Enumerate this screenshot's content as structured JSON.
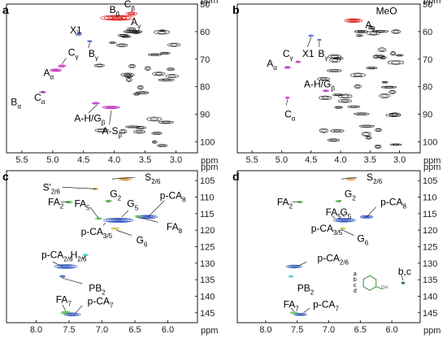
{
  "chart_data": [
    {
      "panel": "a",
      "type": "scatter",
      "xlabel": "ppm",
      "ylabel": "ppm",
      "xlim": [
        5.75,
        2.65
      ],
      "ylim": [
        50,
        104
      ],
      "x_ticks": [
        "5.5",
        "5.0",
        "4.5",
        "4.0",
        "3.5",
        "3.0"
      ],
      "y_ticks": [
        "50",
        "60",
        "70",
        "80",
        "90",
        "100"
      ],
      "peaks": [
        {
          "label": "B",
          "sub": "β",
          "x": 3.95,
          "y": 55.0,
          "color": "#e02020",
          "w": 0.55,
          "h": 1.8,
          "n": 3
        },
        {
          "label": "C",
          "sub": "β",
          "x": 3.72,
          "y": 53.5,
          "color": "#e02020",
          "w": 0.18,
          "h": 1.2,
          "n": 1
        },
        {
          "label": "A",
          "sub": "γ",
          "x": 3.7,
          "y": 60.0,
          "color": "#222222",
          "w": 0.3,
          "h": 1.0,
          "n": 2
        },
        {
          "label": "X1",
          "sub": "",
          "x": 4.58,
          "y": 61.0,
          "color": "#4c63c8",
          "w": 0.1,
          "h": 0.7,
          "n": 1
        },
        {
          "label": "B",
          "sub": "γ",
          "x": 4.4,
          "y": 63.5,
          "color": "#4c63c8",
          "w": 0.07,
          "h": 0.6,
          "n": 1
        },
        {
          "label": "C",
          "sub": "γ",
          "x": 4.85,
          "y": 72.5,
          "color": "#c02fc0",
          "w": 0.12,
          "h": 0.8,
          "n": 1
        },
        {
          "label": "A",
          "sub": "α",
          "x": 4.95,
          "y": 74.0,
          "color": "#c02fc0",
          "w": 0.18,
          "h": 0.9,
          "n": 2
        },
        {
          "label": "C",
          "sub": "α",
          "x": 5.15,
          "y": 82.0,
          "color": "#c02fc0",
          "w": 0.07,
          "h": 0.6,
          "n": 1
        },
        {
          "label": "A-H/G",
          "sub": "β",
          "x": 4.3,
          "y": 86.0,
          "color": "#c02fc0",
          "w": 0.12,
          "h": 0.7,
          "n": 1
        },
        {
          "label": "A-S",
          "sub": "β",
          "x": 4.05,
          "y": 87.5,
          "color": "#c02fc0",
          "w": 0.28,
          "h": 0.9,
          "n": 2
        }
      ],
      "annotations": [
        {
          "text": "B",
          "sub": "β",
          "x": 4.08,
          "y": 52.0
        },
        {
          "text": "C",
          "sub": "β",
          "x": 3.84,
          "y": 50.0
        },
        {
          "text": "A",
          "sub": "γ",
          "x": 3.73,
          "y": 56.5
        },
        {
          "text": "X1",
          "sub": "",
          "x": 4.72,
          "y": 59.5
        },
        {
          "text": "B",
          "sub": "γ",
          "x": 4.42,
          "y": 68.0
        },
        {
          "text": "C",
          "sub": "γ",
          "x": 4.75,
          "y": 67.5
        },
        {
          "text": "A",
          "sub": "α",
          "x": 5.15,
          "y": 75.0
        },
        {
          "text": "B",
          "sub": "α",
          "x": 5.68,
          "y": 85.5
        },
        {
          "text": "C",
          "sub": "α",
          "x": 5.3,
          "y": 84.0
        },
        {
          "text": "A-H/G",
          "sub": "β",
          "x": 4.65,
          "y": 91.5
        },
        {
          "text": "A-S",
          "sub": "β",
          "x": 4.2,
          "y": 96.0
        }
      ],
      "leaders": [
        [
          4.58,
          60.0,
          4.62,
          59.6
        ],
        [
          4.4,
          64.0,
          4.42,
          66.0
        ],
        [
          4.85,
          71.8,
          4.78,
          69.6
        ],
        [
          5.15,
          81.6,
          5.22,
          82.2
        ],
        [
          4.28,
          86.6,
          4.42,
          89.5
        ],
        [
          4.05,
          88.6,
          4.08,
          93.8
        ]
      ]
    },
    {
      "panel": "b",
      "type": "scatter",
      "xlabel": "ppm",
      "ylabel": "ppm",
      "xlim": [
        5.75,
        2.65
      ],
      "ylim": [
        50,
        104
      ],
      "x_ticks": [
        "5.5",
        "5.0",
        "4.5",
        "4.0",
        "3.5",
        "3.0"
      ],
      "y_ticks": [
        "50",
        "60",
        "70",
        "80",
        "90",
        "100"
      ],
      "peaks": [
        {
          "label": "MeO",
          "sub": "",
          "x": 3.78,
          "y": 56.0,
          "color": "#e02020",
          "w": 0.3,
          "h": 1.3,
          "n": 2
        },
        {
          "label": "A",
          "sub": "γ",
          "x": 3.65,
          "y": 60.0,
          "color": "#222222",
          "w": 0.22,
          "h": 0.9,
          "n": 1
        },
        {
          "label": "X1",
          "sub": "",
          "x": 4.5,
          "y": 61.5,
          "color": "#4c63c8",
          "w": 0.08,
          "h": 0.6,
          "n": 1
        },
        {
          "label": "B",
          "sub": "γ",
          "x": 4.36,
          "y": 63.0,
          "color": "#4c63c8",
          "w": 0.06,
          "h": 0.5,
          "n": 1
        },
        {
          "label": "C",
          "sub": "γ",
          "x": 4.72,
          "y": 71.0,
          "color": "#c02fc0",
          "w": 0.08,
          "h": 0.6,
          "n": 1
        },
        {
          "label": "A",
          "sub": "α",
          "x": 4.9,
          "y": 73.0,
          "color": "#c02fc0",
          "w": 0.1,
          "h": 0.7,
          "n": 1
        },
        {
          "label": "A-H/G",
          "sub": "β",
          "x": 4.25,
          "y": 81.5,
          "color": "#c02fc0",
          "w": 0.1,
          "h": 0.6,
          "n": 1
        },
        {
          "label": "C",
          "sub": "α",
          "x": 4.9,
          "y": 84.0,
          "color": "#c02fc0",
          "w": 0.06,
          "h": 0.5,
          "n": 1
        }
      ],
      "annotations": [
        {
          "text": "MeO",
          "sub": "",
          "x": 3.4,
          "y": 52.5
        },
        {
          "text": "A",
          "sub": "γ",
          "x": 3.58,
          "y": 57.5
        },
        {
          "text": "A",
          "sub": "α",
          "x": 5.25,
          "y": 71.5
        },
        {
          "text": "C",
          "sub": "γ",
          "x": 4.98,
          "y": 68.0
        },
        {
          "text": "X1",
          "sub": "",
          "x": 4.65,
          "y": 68.0
        },
        {
          "text": "B",
          "sub": "γ",
          "x": 4.38,
          "y": 68.0
        },
        {
          "text": "A-H/G",
          "sub": "β",
          "x": 4.62,
          "y": 79.0
        },
        {
          "text": "C",
          "sub": "α",
          "x": 4.95,
          "y": 90.0
        }
      ],
      "leaders": [
        [
          4.5,
          62.2,
          4.56,
          65.6
        ],
        [
          4.36,
          63.6,
          4.36,
          65.6
        ],
        [
          4.9,
          84.6,
          4.92,
          86.8
        ]
      ]
    },
    {
      "panel": "c",
      "type": "scatter",
      "xlabel": "ppm",
      "ylabel": "ppm",
      "xlim": [
        8.45,
        5.55
      ],
      "ylim": [
        102,
        148
      ],
      "x_ticks": [
        "8.0",
        "7.5",
        "7.0",
        "6.5",
        "6.0"
      ],
      "y_ticks": [
        "105",
        "110",
        "115",
        "120",
        "125",
        "130",
        "135",
        "140",
        "145"
      ],
      "peaks": [
        {
          "label": "S",
          "sub": "2/6",
          "x": 6.65,
          "y": 104.5,
          "color": "#d49040",
          "w": 0.2,
          "h": 0.9,
          "n": 2
        },
        {
          "label": "S'",
          "sub": "2/6",
          "x": 7.1,
          "y": 107.5,
          "color": "#d49040",
          "w": 0.07,
          "h": 0.5,
          "n": 1
        },
        {
          "label": "FA",
          "sub": "2",
          "x": 7.5,
          "y": 111.5,
          "color": "#5cc050",
          "w": 0.1,
          "h": 0.6,
          "n": 1
        },
        {
          "label": "G",
          "sub": "2",
          "x": 6.9,
          "y": 111.2,
          "color": "#5cc050",
          "w": 0.1,
          "h": 0.6,
          "n": 1
        },
        {
          "label": "p-CA",
          "sub": "8",
          "x": 6.32,
          "y": 116.0,
          "color": "#3a5fc0",
          "w": 0.32,
          "h": 1.0,
          "n": 3
        },
        {
          "label": "G",
          "sub": "5",
          "x": 6.75,
          "y": 117.0,
          "color": "#3a5fc0",
          "w": 0.45,
          "h": 1.3,
          "n": 4
        },
        {
          "label": "FA",
          "sub": "5",
          "x": 7.05,
          "y": 116.5,
          "color": "#5cc050",
          "w": 0.1,
          "h": 0.5,
          "n": 1
        },
        {
          "label": "FA",
          "sub": "8",
          "x": 6.45,
          "y": 115.8,
          "color": "#5cc050",
          "w": 0.1,
          "h": 0.5,
          "n": 1
        },
        {
          "label": "G",
          "sub": "6",
          "x": 6.8,
          "y": 119.5,
          "color": "#c8c040",
          "w": 0.12,
          "h": 0.6,
          "n": 1
        },
        {
          "label": "H",
          "sub": "2/6",
          "x": 7.25,
          "y": 127.5,
          "color": "#40c8c8",
          "w": 0.08,
          "h": 0.6,
          "n": 1
        },
        {
          "label": "p-CA",
          "sub": "2/6",
          "x": 7.55,
          "y": 131.0,
          "color": "#3a5fc0",
          "w": 0.35,
          "h": 1.2,
          "n": 3
        },
        {
          "label": "PB",
          "sub": "2",
          "x": 7.6,
          "y": 134.0,
          "color": "#3a5fc0",
          "w": 0.08,
          "h": 0.6,
          "n": 1
        },
        {
          "label": "FA",
          "sub": "7",
          "x": 7.55,
          "y": 145.0,
          "color": "#5cc050",
          "w": 0.15,
          "h": 0.8,
          "n": 2
        },
        {
          "label": "p-CA",
          "sub": "7",
          "x": 7.45,
          "y": 145.5,
          "color": "#3a5fc0",
          "w": 0.25,
          "h": 0.9,
          "n": 2
        }
      ],
      "annotations": [
        {
          "text": "S",
          "sub": "2/6",
          "x": 6.35,
          "y": 104.0
        },
        {
          "text": "S'",
          "sub": "2/6",
          "x": 7.9,
          "y": 107.0
        },
        {
          "text": "FA",
          "sub": "2",
          "x": 7.82,
          "y": 111.5
        },
        {
          "text": "FA",
          "sub": "5",
          "x": 7.42,
          "y": 112.0
        },
        {
          "text": "G",
          "sub": "2",
          "x": 6.88,
          "y": 109.0
        },
        {
          "text": "G",
          "sub": "5",
          "x": 6.62,
          "y": 112.0
        },
        {
          "text": "p-CA",
          "sub": "8",
          "x": 6.12,
          "y": 109.5
        },
        {
          "text": "FA",
          "sub": "8",
          "x": 6.02,
          "y": 119.0
        },
        {
          "text": "p-CA",
          "sub": "3/5",
          "x": 7.32,
          "y": 120.5
        },
        {
          "text": "G",
          "sub": "6",
          "x": 6.48,
          "y": 123.0
        },
        {
          "text": "H",
          "sub": "2/6",
          "x": 7.48,
          "y": 127.5
        },
        {
          "text": "p-CA",
          "sub": "2/6",
          "x": 7.92,
          "y": 127.5
        },
        {
          "text": "PB",
          "sub": "2",
          "x": 7.2,
          "y": 137.5
        },
        {
          "text": "FA",
          "sub": "7",
          "x": 7.7,
          "y": 141.0
        },
        {
          "text": "p-CA",
          "sub": "7",
          "x": 7.22,
          "y": 141.5
        }
      ],
      "leaders": [
        [
          6.85,
          104.5,
          6.5,
          104.0
        ],
        [
          7.1,
          107.5,
          7.6,
          107.0
        ],
        [
          7.5,
          111.5,
          7.62,
          111.5
        ],
        [
          7.05,
          116.5,
          7.18,
          113.0
        ],
        [
          6.9,
          111.6,
          6.9,
          111.0
        ],
        [
          6.7,
          116.0,
          6.6,
          114.0
        ],
        [
          6.3,
          116.0,
          6.05,
          111.0
        ],
        [
          6.4,
          116.3,
          6.15,
          117.6
        ],
        [
          6.95,
          117.8,
          6.98,
          118.6
        ],
        [
          6.78,
          120.0,
          6.55,
          121.6
        ],
        [
          7.25,
          127.8,
          7.3,
          128.6
        ],
        [
          7.6,
          131.0,
          7.75,
          129.6
        ],
        [
          7.6,
          134.5,
          7.3,
          136.2
        ],
        [
          7.55,
          144.5,
          7.6,
          142.6
        ],
        [
          7.4,
          145.0,
          7.3,
          142.8
        ]
      ]
    },
    {
      "panel": "d",
      "type": "scatter",
      "xlabel": "ppm",
      "ylabel": "ppm",
      "xlim": [
        8.45,
        5.55
      ],
      "ylim": [
        102,
        148
      ],
      "x_ticks": [
        "8.0",
        "7.5",
        "7.0",
        "6.5",
        "6.0"
      ],
      "y_ticks": [
        "105",
        "110",
        "115",
        "120",
        "125",
        "130",
        "135",
        "140",
        "145"
      ],
      "peaks": [
        {
          "label": "S",
          "sub": "2/6",
          "x": 6.65,
          "y": 104.5,
          "color": "#d49040",
          "w": 0.15,
          "h": 0.7,
          "n": 1
        },
        {
          "label": "FA",
          "sub": "2",
          "x": 7.45,
          "y": 111.5,
          "color": "#5cc050",
          "w": 0.08,
          "h": 0.5,
          "n": 1
        },
        {
          "label": "G",
          "sub": "2",
          "x": 6.85,
          "y": 111.2,
          "color": "#5cc050",
          "w": 0.08,
          "h": 0.5,
          "n": 1
        },
        {
          "label": "G",
          "sub": "5",
          "x": 6.75,
          "y": 117.0,
          "color": "#3a5fc0",
          "w": 0.35,
          "h": 1.1,
          "n": 3
        },
        {
          "label": "p-CA",
          "sub": "8",
          "x": 6.4,
          "y": 116.0,
          "color": "#3a5fc0",
          "w": 0.2,
          "h": 0.8,
          "n": 2
        },
        {
          "label": "G",
          "sub": "6",
          "x": 6.78,
          "y": 119.5,
          "color": "#c8c040",
          "w": 0.08,
          "h": 0.5,
          "n": 1
        },
        {
          "label": "p-CA",
          "sub": "2/6",
          "x": 7.55,
          "y": 131.0,
          "color": "#3a5fc0",
          "w": 0.25,
          "h": 0.9,
          "n": 2
        },
        {
          "label": "PB",
          "sub": "2",
          "x": 7.6,
          "y": 134.0,
          "color": "#40c8c8",
          "w": 0.07,
          "h": 0.5,
          "n": 1
        },
        {
          "label": "b,c",
          "sub": "",
          "x": 5.82,
          "y": 136.0,
          "color": "#2a7030",
          "w": 0.05,
          "h": 0.6,
          "n": 1
        },
        {
          "label": "FA",
          "sub": "7",
          "x": 7.55,
          "y": 145.0,
          "color": "#5cc050",
          "w": 0.12,
          "h": 0.6,
          "n": 1
        },
        {
          "label": "p-CA",
          "sub": "7",
          "x": 7.45,
          "y": 145.5,
          "color": "#3a5fc0",
          "w": 0.2,
          "h": 0.7,
          "n": 2
        }
      ],
      "annotations": [
        {
          "text": "S",
          "sub": "2/6",
          "x": 6.4,
          "y": 104.0
        },
        {
          "text": "FA",
          "sub": "2",
          "x": 7.82,
          "y": 111.5
        },
        {
          "text": "G",
          "sub": "2",
          "x": 6.75,
          "y": 109.0
        },
        {
          "text": "FA",
          "sub": "5",
          "x": 7.05,
          "y": 114.5
        },
        {
          "text": "G",
          "sub": "5",
          "x": 6.82,
          "y": 114.5
        },
        {
          "text": "p-CA",
          "sub": "8",
          "x": 6.18,
          "y": 111.5
        },
        {
          "text": "p-CA",
          "sub": "3/5",
          "x": 7.28,
          "y": 119.5
        },
        {
          "text": "G",
          "sub": "6",
          "x": 6.55,
          "y": 122.5
        },
        {
          "text": "p-CA",
          "sub": "2/6",
          "x": 7.18,
          "y": 128.5
        },
        {
          "text": "PB",
          "sub": "2",
          "x": 7.5,
          "y": 137.5
        },
        {
          "text": "b,c",
          "sub": "",
          "x": 5.9,
          "y": 132.5
        },
        {
          "text": "FA",
          "sub": "7",
          "x": 7.72,
          "y": 142.5
        },
        {
          "text": "p-CA",
          "sub": "7",
          "x": 7.25,
          "y": 142.5
        }
      ],
      "leaders": [
        [
          6.8,
          104.5,
          6.55,
          104.0
        ],
        [
          7.45,
          111.5,
          7.58,
          111.5
        ],
        [
          6.85,
          111.5,
          6.8,
          111.0
        ],
        [
          6.9,
          116.5,
          6.95,
          115.6
        ],
        [
          6.75,
          116.0,
          6.78,
          115.6
        ],
        [
          6.4,
          116.0,
          6.25,
          113.0
        ],
        [
          6.8,
          119.8,
          6.6,
          121.6
        ],
        [
          7.5,
          131.0,
          7.35,
          129.6
        ],
        [
          5.82,
          135.2,
          5.85,
          133.6
        ],
        [
          7.55,
          144.5,
          7.6,
          143.6
        ],
        [
          7.4,
          145.0,
          7.3,
          143.6
        ]
      ],
      "inset_structure": {
        "labels": [
          "a",
          "b",
          "c",
          "d"
        ],
        "group": "OH",
        "color": "#3a8a3a"
      }
    }
  ]
}
